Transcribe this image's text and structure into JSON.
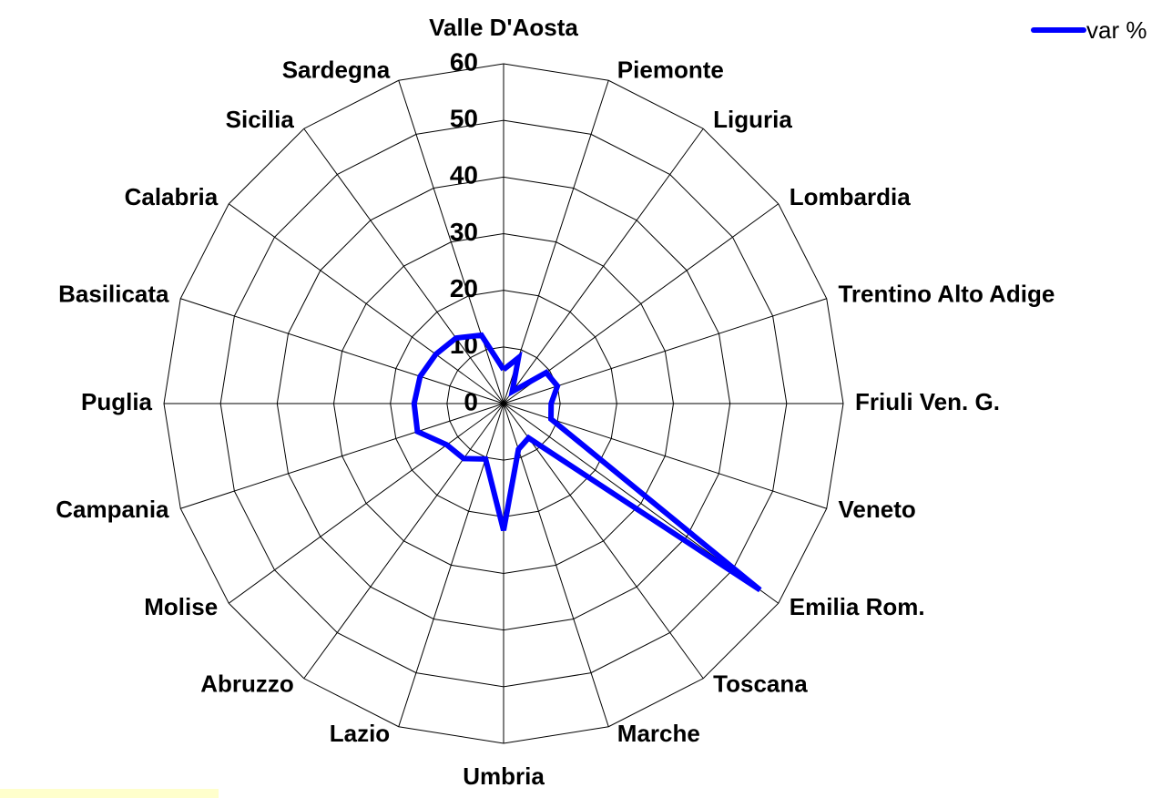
{
  "chart_data": {
    "type": "radar",
    "categories": [
      "Valle D'Aosta",
      "Piemonte",
      "Liguria",
      "Lombardia",
      "Trentino Alto Adige",
      "Friuli Ven. G.",
      "Veneto",
      "Emilia Rom.",
      "Toscana",
      "Marche",
      "Umbria",
      "Lazio",
      "Abruzzo",
      "Molise",
      "Campania",
      "Puglia",
      "Basilicata",
      "Calabria",
      "Sicilia",
      "Sardegna"
    ],
    "series": [
      {
        "name": "var %",
        "color": "#0000ff",
        "values": [
          6,
          8.5,
          2.6,
          9.3,
          10,
          8.4,
          8.8,
          56,
          7.5,
          8.5,
          22.4,
          10.3,
          12,
          12.4,
          16,
          15.8,
          15.5,
          14.8,
          14.3,
          12.7
        ]
      }
    ],
    "ylim": [
      0,
      60
    ],
    "yticks": [
      0,
      10,
      20,
      30,
      40,
      50,
      60
    ],
    "grid": true,
    "legend": "top-right"
  }
}
